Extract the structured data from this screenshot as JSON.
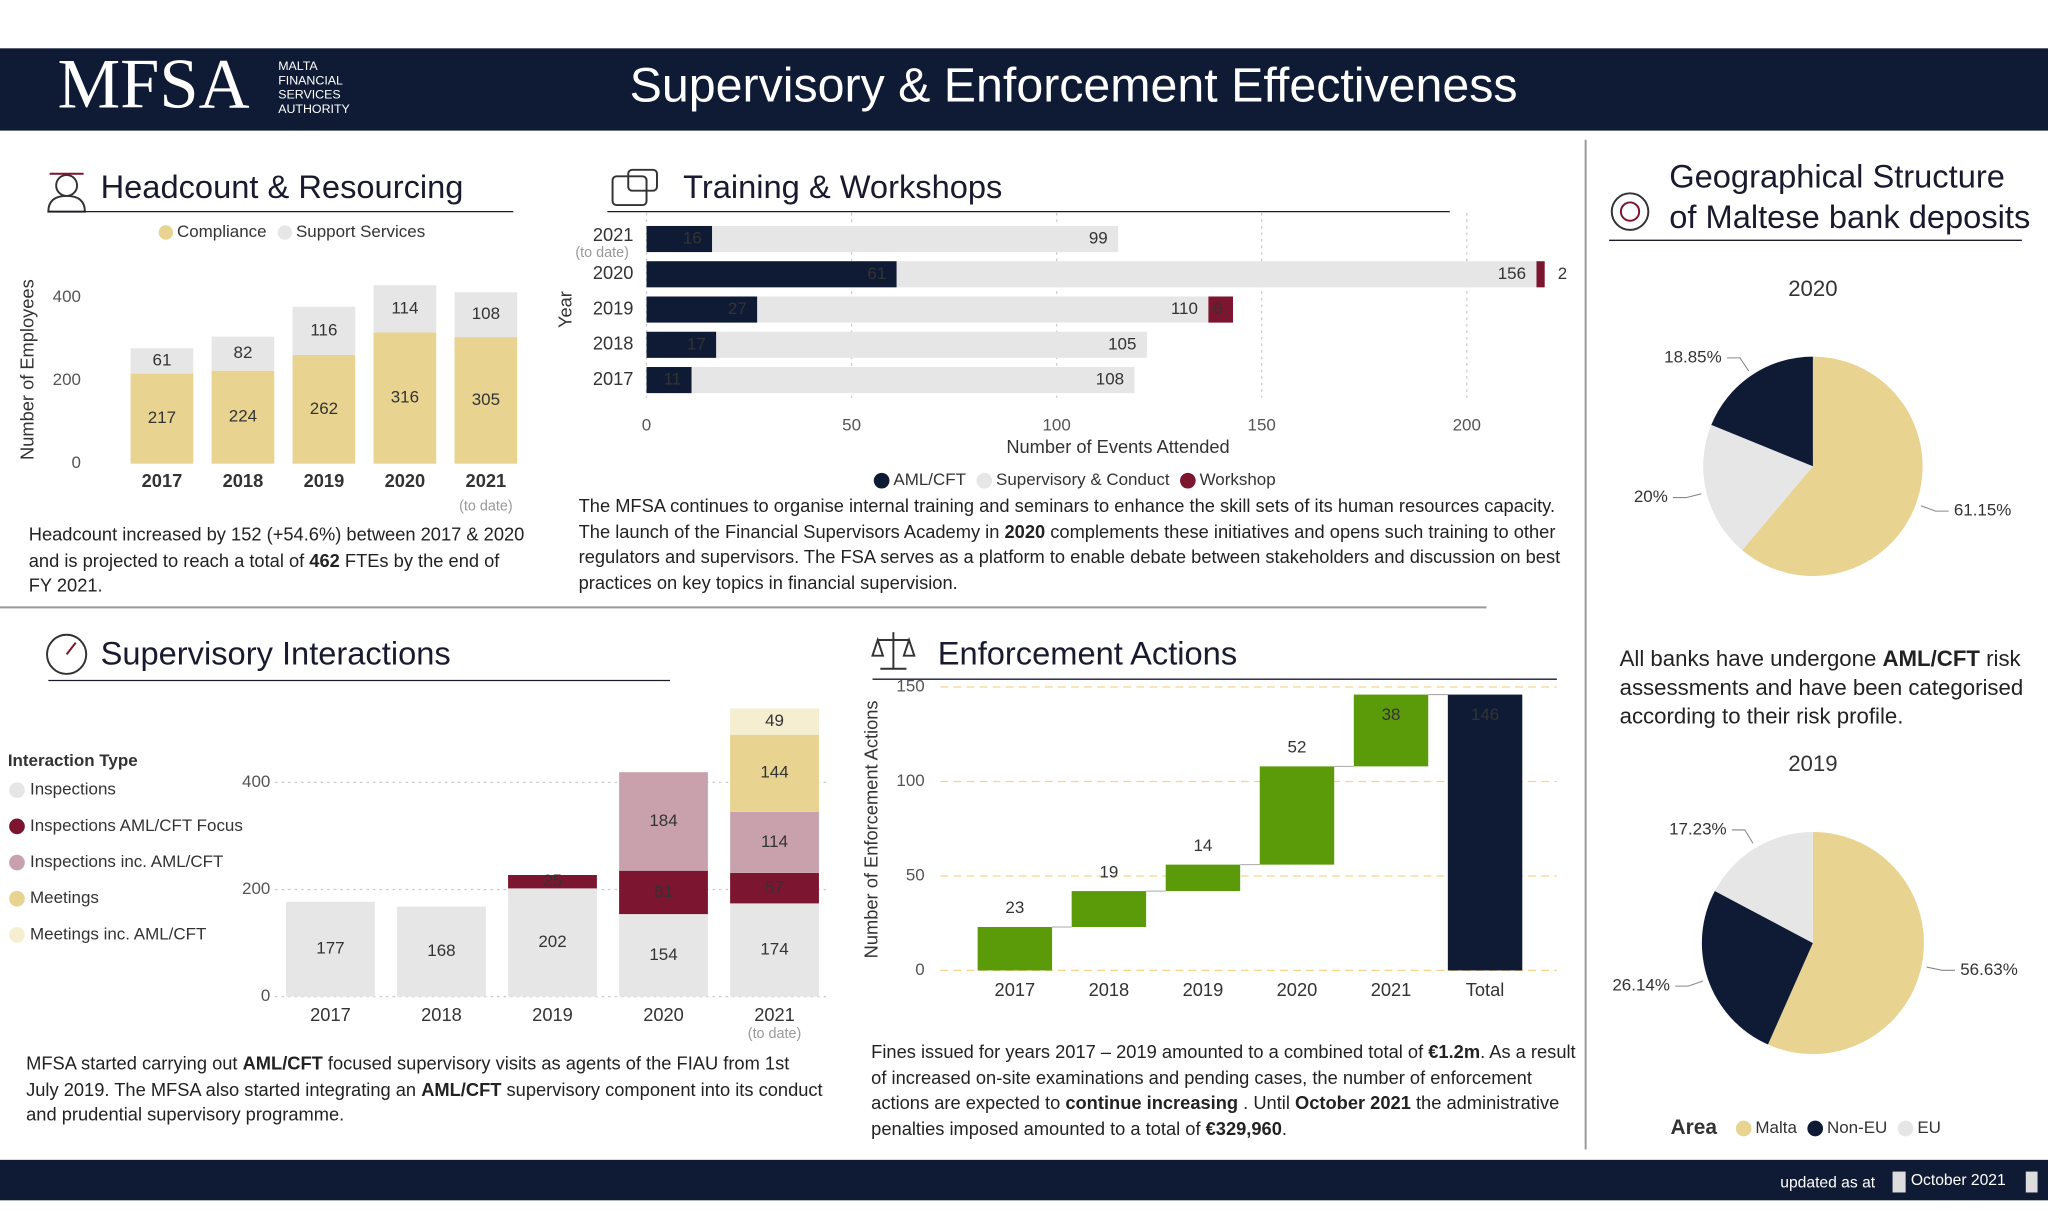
{
  "header": {
    "logo": "MFSA",
    "logo_lines": [
      "MALTA",
      "FINANCIAL",
      "SERVICES",
      "AUTHORITY"
    ],
    "title": "Supervisory & Enforcement Effectiveness"
  },
  "panels": {
    "headcount": {
      "title": "Headcount & Resourcing",
      "text": [
        {
          "text": "Headcount increased by 152 (+54.6%) between 2017 & 2020 and is projected to reach a total of ",
          "bold": false
        },
        {
          "text": "462",
          "bold": true
        },
        {
          "text": " FTEs by the end of FY 2021.",
          "bold": false
        }
      ]
    },
    "training": {
      "title": "Training & Workshops",
      "text": [
        {
          "text": "The MFSA continues to organise internal training and seminars to enhance the skill sets of its human resources capacity. The launch of the Financial Supervisors Academy in ",
          "bold": false
        },
        {
          "text": "2020",
          "bold": true
        },
        {
          "text": " complements these initiatives and opens such training to other regulators and supervisors. The FSA serves as a platform to enable debate between stakeholders and discussion on best practices on key topics in financial supervision.",
          "bold": false
        }
      ]
    },
    "supervisory": {
      "title": "Supervisory Interactions",
      "text": [
        {
          "text": "MFSA started carrying out ",
          "bold": false
        },
        {
          "text": "AML/CFT",
          "bold": true
        },
        {
          "text": " focused supervisory visits as agents of the FIAU from 1st July 2019. The MFSA also started integrating an ",
          "bold": false
        },
        {
          "text": "AML/CFT",
          "bold": true
        },
        {
          "text": " supervisory component into its conduct and prudential supervisory programme.",
          "bold": false
        }
      ]
    },
    "enforcement": {
      "title": "Enforcement Actions",
      "text": [
        {
          "text": "Fines issued for years 2017 – 2019 amounted to a combined total of ",
          "bold": false
        },
        {
          "text": "€1.2m",
          "bold": true
        },
        {
          "text": ". As a result of increased on-site examinations and pending cases, the number of enforcement actions are expected to ",
          "bold": false
        },
        {
          "text": "continue increasing",
          "bold": true
        },
        {
          "text": " . Until ",
          "bold": false
        },
        {
          "text": "October 2021",
          "bold": true
        },
        {
          "text": " the administrative penalties imposed amounted to a total of ",
          "bold": false
        },
        {
          "text": "€329,960",
          "bold": true
        },
        {
          "text": ".",
          "bold": false
        }
      ]
    },
    "geography": {
      "title_lines": [
        "Geographical Structure",
        "of Maltese bank deposits"
      ],
      "text": [
        {
          "text": "All banks have undergone ",
          "bold": false
        },
        {
          "text": "AML/CFT",
          "bold": true
        },
        {
          "text": " risk assessments and have been categorised according to their risk profile.",
          "bold": false
        }
      ],
      "legend": {
        "title": "Area",
        "items": [
          {
            "name": "Malta",
            "color": "#e8d490"
          },
          {
            "name": "Non-EU",
            "color": "#0f1b35"
          },
          {
            "name": "EU",
            "color": "#e6e6e6"
          }
        ]
      }
    }
  },
  "chart_data": [
    {
      "type": "bar",
      "categories": [
        "2017",
        "2018",
        "2019",
        "2020",
        "2021"
      ],
      "category_note": "(to date)",
      "y_label": "Number of Employees",
      "legend": "top",
      "grid": false,
      "series": [
        {
          "name": "Compliance",
          "color": "#e8d490",
          "values": [
            217,
            224,
            262,
            316,
            305
          ]
        },
        {
          "name": "Support Services",
          "color": "#e6e6e6",
          "values": [
            61,
            82,
            116,
            114,
            108
          ]
        }
      ],
      "ylim": [
        0,
        450
      ],
      "yticks": [
        0,
        200,
        400
      ]
    },
    {
      "type": "hbar",
      "categories": [
        "2021",
        "2020",
        "2019",
        "2018",
        "2017"
      ],
      "category_note": "(to date)",
      "x_label": "Number of Events Attended",
      "y_label": "Year",
      "legend": "bottom",
      "grid": true,
      "series": [
        {
          "name": "AML/CFT",
          "color": "#0f1b35",
          "values": [
            16,
            61,
            27,
            17,
            11
          ]
        },
        {
          "name": "Supervisory & Conduct",
          "color": "#e6e6e6",
          "values": [
            99,
            156,
            110,
            105,
            108
          ]
        },
        {
          "name": "Workshop",
          "color": "#7b1530",
          "values": [
            null,
            2,
            6,
            null,
            null
          ]
        }
      ],
      "xlim": [
        0,
        220
      ],
      "xticks": [
        0,
        50,
        100,
        150,
        200
      ]
    },
    {
      "type": "bar",
      "categories": [
        "2017",
        "2018",
        "2019",
        "2020",
        "2021"
      ],
      "category_note": "(to date)",
      "legend": "left",
      "legend_title": "Interaction Type",
      "grid": true,
      "series": [
        {
          "name": "Inspections",
          "color": "#e6e6e6",
          "values": [
            177,
            168,
            202,
            154,
            174
          ]
        },
        {
          "name": "Inspections AML/CFT Focus",
          "color": "#7b1530",
          "values": [
            null,
            null,
            25,
            81,
            57
          ]
        },
        {
          "name": "Inspections inc. AML/CFT",
          "color": "#c9a1ad",
          "values": [
            null,
            null,
            null,
            184,
            114
          ]
        },
        {
          "name": "Meetings",
          "color": "#e8d490",
          "values": [
            null,
            null,
            null,
            null,
            144
          ]
        },
        {
          "name": "Meetings inc. AML/CFT",
          "color": "#f6eed0",
          "values": [
            null,
            null,
            null,
            null,
            49
          ]
        }
      ],
      "ylim": [
        0,
        550
      ],
      "yticks": [
        0,
        200,
        400
      ]
    },
    {
      "type": "waterfall",
      "categories": [
        "2017",
        "2018",
        "2019",
        "2020",
        "2021",
        "Total"
      ],
      "values": [
        23,
        19,
        14,
        52,
        38,
        146
      ],
      "color": "#5b9b0a",
      "total_color": "#0f1b35",
      "y_label": "Number of Enforcement Actions",
      "grid": true,
      "ylim": [
        0,
        150
      ],
      "yticks": [
        0,
        50,
        100,
        150
      ]
    },
    {
      "type": "pie",
      "title": "2020",
      "categories": [
        "Malta",
        "EU",
        "Non-EU"
      ],
      "values": [
        61.15,
        20,
        18.85
      ],
      "value_labels": [
        "61.15%",
        "20%",
        "18.85%"
      ],
      "colors": [
        "#e8d490",
        "#e6e6e6",
        "#0f1b35"
      ]
    },
    {
      "type": "pie",
      "title": "2019",
      "categories": [
        "Malta",
        "Non-EU",
        "EU"
      ],
      "values": [
        56.63,
        26.14,
        17.23
      ],
      "value_labels": [
        "56.63%",
        "26.14%",
        "17.23%"
      ],
      "colors": [
        "#e8d490",
        "#0f1b35",
        "#e6e6e6"
      ]
    }
  ],
  "footer": {
    "label": "updated as at",
    "date": "October 2021"
  }
}
